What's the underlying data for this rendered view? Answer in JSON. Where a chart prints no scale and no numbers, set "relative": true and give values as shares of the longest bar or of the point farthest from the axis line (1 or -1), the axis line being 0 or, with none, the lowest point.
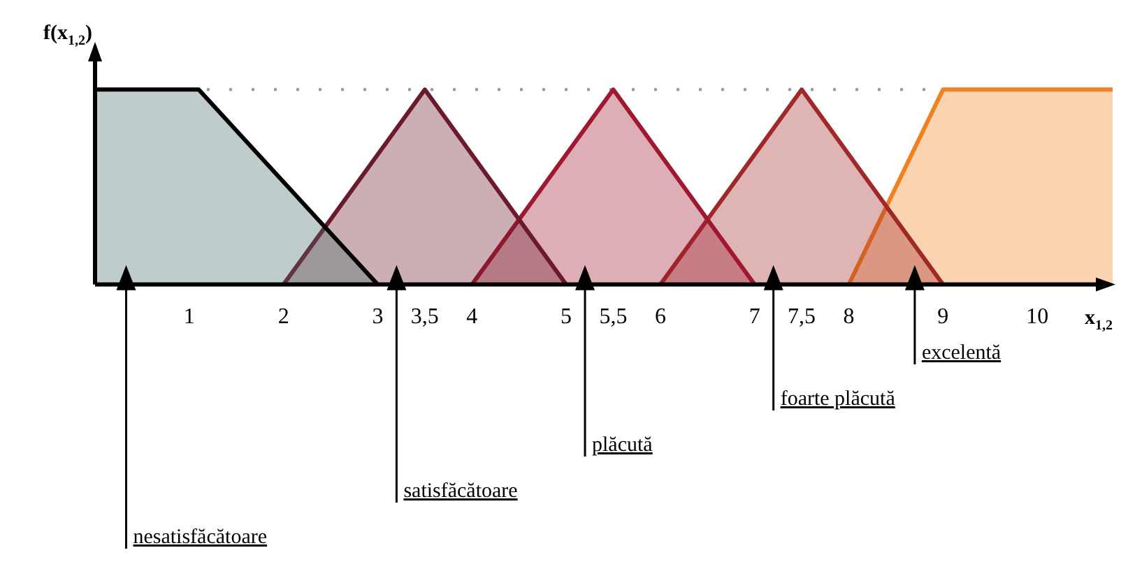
{
  "chart_data": {
    "type": "area",
    "relative": true,
    "xlabel": "x$_{1,2}$",
    "ylabel": "f(x$_{1,2}$)",
    "xlim": [
      0,
      10.8
    ],
    "xticks": [
      1,
      2,
      3,
      {
        "value": 3.5,
        "label": "3,5"
      },
      4,
      5,
      {
        "value": 5.5,
        "label": "5,5"
      },
      6,
      7,
      {
        "value": 7.5,
        "label": "7,5"
      },
      8,
      9,
      10
    ],
    "grid": false,
    "legend": false,
    "tick_labels": "x",
    "series": [
      {
        "name": "nesatisfăcătoare",
        "color": "#000000",
        "x": [
          0,
          1.1,
          3
        ],
        "values": [
          1,
          1,
          0
        ]
      },
      {
        "name": "satisfăcătoare",
        "color": "#6b1a2a",
        "x": [
          2,
          3.5,
          5
        ],
        "values": [
          0,
          1,
          0
        ]
      },
      {
        "name": "plăcută",
        "color": "#a01830",
        "x": [
          4,
          5.5,
          7
        ],
        "values": [
          0,
          1,
          0
        ]
      },
      {
        "name": "foarte plăcută",
        "color": "#a02828",
        "x": [
          6,
          7.5,
          9
        ],
        "values": [
          0,
          1,
          0
        ]
      },
      {
        "name": "excelentă",
        "color": "#f08020",
        "x": [
          8,
          9,
          10.8
        ],
        "values": [
          0,
          1,
          1
        ]
      }
    ],
    "ref_lines": [
      {
        "axis": "y",
        "value": 1,
        "line_style": "dotted",
        "color": "#999999"
      }
    ]
  }
}
